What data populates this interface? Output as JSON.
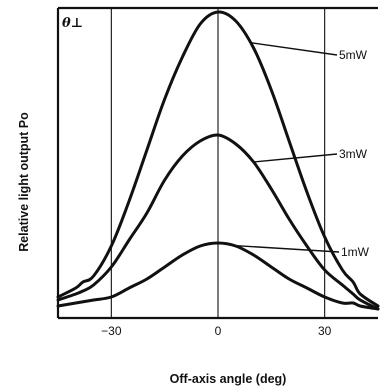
{
  "chart_data": {
    "type": "line",
    "corner_label": "θ⊥",
    "xlabel": "Off-axis angle (deg)",
    "ylabel": "Relative light output Po",
    "xlim": [
      -45,
      45
    ],
    "ylim": [
      0,
      1.0
    ],
    "xticks": [
      -30,
      0,
      30
    ],
    "xtick_labels": [
      "−30",
      "0",
      "30"
    ],
    "vertical_gridlines_at": [
      -30,
      0,
      30
    ],
    "grid": "vertical lines only",
    "legend": "labels on curves with leader lines",
    "series": [
      {
        "name": "5mW",
        "x": [
          -45,
          -40,
          -38,
          -35,
          -30,
          -25,
          -20,
          -15,
          -10,
          -5,
          0,
          5,
          10,
          15,
          20,
          25,
          30,
          35,
          38,
          40,
          45
        ],
        "y": [
          0.05,
          0.08,
          0.1,
          0.12,
          0.22,
          0.37,
          0.54,
          0.71,
          0.85,
          0.96,
          1.0,
          0.97,
          0.88,
          0.74,
          0.57,
          0.4,
          0.25,
          0.14,
          0.1,
          0.06,
          0.02
        ]
      },
      {
        "name": "3mW",
        "x": [
          -45,
          -40,
          -38,
          -35,
          -30,
          -25,
          -20,
          -15,
          -10,
          -5,
          0,
          5,
          10,
          15,
          20,
          25,
          30,
          35,
          38,
          40,
          45
        ],
        "y": [
          0.04,
          0.06,
          0.07,
          0.09,
          0.15,
          0.24,
          0.33,
          0.44,
          0.52,
          0.57,
          0.59,
          0.56,
          0.5,
          0.41,
          0.31,
          0.22,
          0.14,
          0.09,
          0.06,
          0.04,
          0.01
        ]
      },
      {
        "name": "1mW",
        "x": [
          -45,
          -40,
          -35,
          -30,
          -25,
          -20,
          -15,
          -10,
          -5,
          0,
          5,
          10,
          15,
          20,
          25,
          30,
          35,
          38,
          40,
          45
        ],
        "y": [
          0.02,
          0.03,
          0.04,
          0.05,
          0.08,
          0.11,
          0.15,
          0.19,
          0.22,
          0.23,
          0.22,
          0.19,
          0.15,
          0.11,
          0.08,
          0.05,
          0.03,
          0.03,
          0.02,
          0.01
        ]
      }
    ]
  }
}
